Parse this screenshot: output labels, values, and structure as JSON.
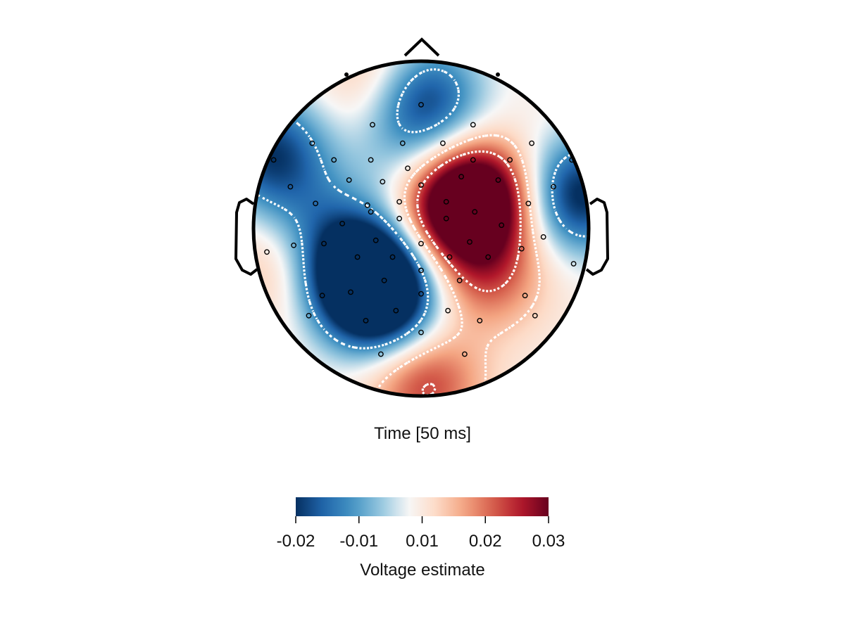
{
  "chart_data": {
    "type": "heatmap",
    "subtype": "eeg-topoplot",
    "title": "Time [50 ms]",
    "colorbar": {
      "label": "Voltage estimate",
      "ticks": [
        {
          "value": -0.02,
          "label": "-0.02"
        },
        {
          "value": -0.01,
          "label": "-0.01"
        },
        {
          "value": 0.01,
          "label": "0.01"
        },
        {
          "value": 0.02,
          "label": "0.02"
        },
        {
          "value": 0.03,
          "label": "0.03"
        }
      ],
      "range": [
        -0.02,
        0.03
      ],
      "colormap": [
        "#053061",
        "#2166ac",
        "#4393c3",
        "#92c5de",
        "#f7f7f7",
        "#fddbc7",
        "#f4a582",
        "#d6604d",
        "#b2182b",
        "#67001f"
      ]
    },
    "contour_style": "white dotted",
    "sensor_marker": "small black open circles",
    "sources": [
      {
        "nx": 0.34,
        "ny": -0.18,
        "value": 0.032
      },
      {
        "nx": 0.18,
        "ny": -0.14,
        "value": 0.014
      },
      {
        "nx": 0.4,
        "ny": 0.28,
        "value": 0.014
      },
      {
        "nx": 0.02,
        "ny": 0.92,
        "value": 0.018
      },
      {
        "nx": 0.12,
        "ny": -0.02,
        "value": 0.006
      },
      {
        "nx": -0.22,
        "ny": -0.88,
        "value": 0.012
      },
      {
        "nx": -0.3,
        "ny": 0.3,
        "value": -0.032
      },
      {
        "nx": -0.22,
        "ny": 0.46,
        "value": -0.02
      },
      {
        "nx": -0.44,
        "ny": 0.18,
        "value": -0.014
      },
      {
        "nx": 0.0,
        "ny": -0.78,
        "value": -0.026
      },
      {
        "nx": 0.94,
        "ny": -0.2,
        "value": -0.026
      },
      {
        "nx": -0.9,
        "ny": -0.46,
        "value": -0.022
      },
      {
        "nx": -0.68,
        "ny": -0.1,
        "value": -0.008
      },
      {
        "nx": -0.08,
        "ny": -0.4,
        "value": -0.006
      },
      {
        "nx": -0.86,
        "ny": 0.22,
        "value": 0.008
      }
    ],
    "sensors": [
      [
        0.0,
        -0.74
      ],
      [
        -0.29,
        -0.62
      ],
      [
        0.31,
        -0.62
      ],
      [
        -0.11,
        -0.51
      ],
      [
        0.13,
        -0.51
      ],
      [
        -0.65,
        -0.51
      ],
      [
        0.66,
        -0.51
      ],
      [
        -0.52,
        -0.41
      ],
      [
        -0.3,
        -0.41
      ],
      [
        0.31,
        -0.41
      ],
      [
        0.53,
        -0.41
      ],
      [
        -0.88,
        -0.41
      ],
      [
        0.9,
        -0.41
      ],
      [
        -0.08,
        -0.36
      ],
      [
        -0.23,
        -0.28
      ],
      [
        0.0,
        -0.26
      ],
      [
        -0.43,
        -0.29
      ],
      [
        0.46,
        -0.29
      ],
      [
        0.24,
        -0.31
      ],
      [
        0.79,
        -0.25
      ],
      [
        -0.78,
        -0.25
      ],
      [
        -0.63,
        -0.15
      ],
      [
        -0.32,
        -0.14
      ],
      [
        -0.13,
        -0.16
      ],
      [
        0.15,
        -0.16
      ],
      [
        -0.3,
        -0.1
      ],
      [
        0.32,
        -0.1
      ],
      [
        0.64,
        -0.15
      ],
      [
        -0.47,
        -0.03
      ],
      [
        -0.13,
        -0.06
      ],
      [
        0.15,
        -0.06
      ],
      [
        0.48,
        -0.02
      ],
      [
        0.73,
        0.05
      ],
      [
        -0.58,
        0.09
      ],
      [
        -0.27,
        0.07
      ],
      [
        0.0,
        0.09
      ],
      [
        0.29,
        0.08
      ],
      [
        0.6,
        0.12
      ],
      [
        -0.92,
        0.14
      ],
      [
        -0.76,
        0.1
      ],
      [
        -0.38,
        0.17
      ],
      [
        -0.17,
        0.17
      ],
      [
        0.17,
        0.17
      ],
      [
        0.4,
        0.17
      ],
      [
        0.91,
        0.21
      ],
      [
        0.0,
        0.25
      ],
      [
        -0.22,
        0.31
      ],
      [
        0.23,
        0.31
      ],
      [
        -0.42,
        0.38
      ],
      [
        -0.59,
        0.4
      ],
      [
        0.62,
        0.4
      ],
      [
        0.0,
        0.39
      ],
      [
        -0.15,
        0.49
      ],
      [
        0.16,
        0.49
      ],
      [
        -0.67,
        0.52
      ],
      [
        0.68,
        0.52
      ],
      [
        -0.33,
        0.55
      ],
      [
        0.35,
        0.55
      ],
      [
        0.0,
        0.62
      ],
      [
        -0.24,
        0.75
      ],
      [
        0.26,
        0.75
      ]
    ]
  }
}
